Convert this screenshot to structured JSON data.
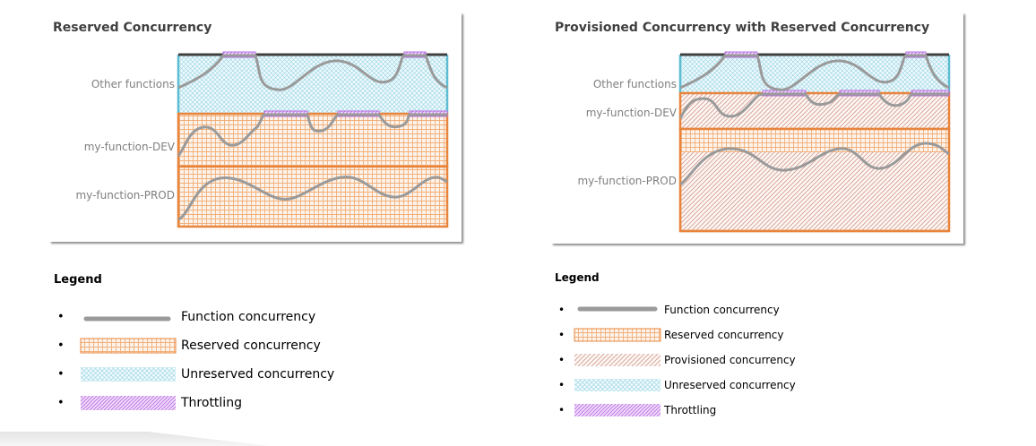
{
  "left_panel": {
    "title": "Reserved Concurrency",
    "rows": [
      "Other functions",
      "my-function-DEV",
      "my-function-PROD"
    ]
  },
  "right_panel": {
    "title": "Provisioned Concurrency with Reserved Concurrency",
    "rows": [
      "Other functions",
      "my-function-DEV",
      "my-function-PROD"
    ]
  },
  "left_legend": {
    "title": "Legend",
    "items": [
      {
        "label": "Function concurrency",
        "swatch": "line"
      },
      {
        "label": "Reserved concurrency",
        "swatch": "grid"
      },
      {
        "label": "Unreserved concurrency",
        "swatch": "crosshatch"
      },
      {
        "label": "Throttling",
        "swatch": "throttle"
      }
    ]
  },
  "right_legend": {
    "title": "Legend",
    "items": [
      {
        "label": "Function concurrency",
        "swatch": "line"
      },
      {
        "label": "Reserved concurrency",
        "swatch": "grid"
      },
      {
        "label": "Provisioned concurrency",
        "swatch": "diagonal"
      },
      {
        "label": "Unreserved concurrency",
        "swatch": "crosshatch"
      },
      {
        "label": "Throttling",
        "swatch": "throttle"
      }
    ]
  },
  "colors": {
    "reserved_border": "#e8843c",
    "unreserved_border": "#5bbcd2",
    "function_line": "#9a9a9a",
    "throttle": "#b86fe0",
    "provisioned": "#c98d80",
    "top_line": "#404040"
  }
}
